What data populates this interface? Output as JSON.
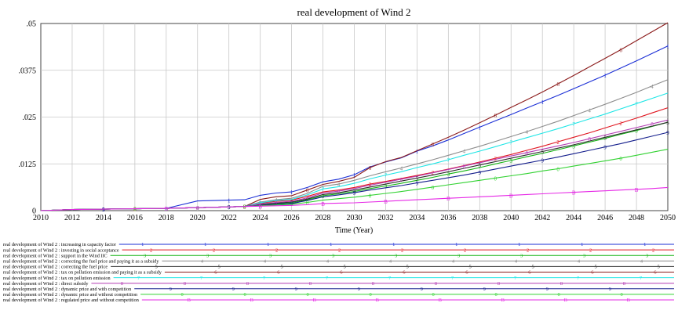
{
  "chart_data": {
    "type": "line",
    "title": "real development of Wind 2",
    "xlabel": "Time (Year)",
    "ylabel": "",
    "xlim": [
      2010,
      2050
    ],
    "ylim": [
      0,
      0.05
    ],
    "x_ticks": [
      "2010",
      "2012",
      "2014",
      "2016",
      "2018",
      "2020",
      "2022",
      "2024",
      "2026",
      "2028",
      "2030",
      "2032",
      "2034",
      "2036",
      "2038",
      "2040",
      "2042",
      "2044",
      "2046",
      "2048",
      "2050"
    ],
    "y_ticks": [
      "0",
      ".0125",
      ".025",
      ".0375",
      ".05"
    ],
    "grid": true,
    "x": [
      2010,
      2012,
      2014,
      2016,
      2018,
      2020,
      2022,
      2023,
      2024,
      2025,
      2026,
      2027,
      2028,
      2029,
      2030,
      2031,
      2032,
      2033,
      2034,
      2035,
      2036,
      2037,
      2038,
      2039,
      2040,
      2041,
      2042,
      2043,
      2044,
      2045,
      2046,
      2047,
      2048,
      2049,
      2050
    ],
    "series": [
      {
        "name": "real development of Wind 2 : increasing in capacity factor",
        "marker": "1",
        "color": "#1b2fd6",
        "values": [
          0,
          0.0003,
          0.0004,
          0.0005,
          0.0006,
          0.0026,
          0.0028,
          0.0029,
          0.0041,
          0.0047,
          0.005,
          0.0062,
          0.0077,
          0.0084,
          0.0096,
          0.0117,
          0.013,
          0.0141,
          0.0159,
          0.0173,
          0.0189,
          0.0206,
          0.0223,
          0.024,
          0.0257,
          0.0274,
          0.0291,
          0.0308,
          0.0326,
          0.0344,
          0.0362,
          0.0381,
          0.04,
          0.042,
          0.044
        ]
      },
      {
        "name": "real development of Wind 2 : investing in social acceptance",
        "marker": "2",
        "color": "#e0141e",
        "values": [
          0,
          0.0003,
          0.0004,
          0.0005,
          0.0006,
          0.0008,
          0.001,
          0.0011,
          0.002,
          0.0025,
          0.0028,
          0.0038,
          0.005,
          0.0055,
          0.0062,
          0.0071,
          0.0078,
          0.0086,
          0.0094,
          0.0102,
          0.0111,
          0.012,
          0.013,
          0.014,
          0.015,
          0.0161,
          0.0172,
          0.0184,
          0.0196,
          0.0208,
          0.0221,
          0.0234,
          0.0247,
          0.0261,
          0.0275
        ]
      },
      {
        "name": "real development of Wind 2 : support in the Wind IIC",
        "marker": "3",
        "color": "#14b414",
        "values": [
          0,
          0.0003,
          0.0004,
          0.0005,
          0.0006,
          0.0008,
          0.001,
          0.0011,
          0.0016,
          0.0019,
          0.0021,
          0.0029,
          0.004,
          0.0045,
          0.0051,
          0.0059,
          0.0066,
          0.0073,
          0.0081,
          0.0089,
          0.0098,
          0.0106,
          0.0115,
          0.0125,
          0.0134,
          0.0144,
          0.0153,
          0.0163,
          0.0173,
          0.0183,
          0.0193,
          0.0204,
          0.0214,
          0.0225,
          0.0236
        ]
      },
      {
        "name": "real development of Wind 2 : correcting the fuel price and paying it as a subsidy",
        "marker": "4",
        "color": "#8c8c8c",
        "values": [
          0,
          0.0003,
          0.0004,
          0.0005,
          0.0006,
          0.0008,
          0.001,
          0.0011,
          0.0023,
          0.0029,
          0.0033,
          0.0046,
          0.0065,
          0.0071,
          0.0081,
          0.0093,
          0.0104,
          0.0114,
          0.0125,
          0.0136,
          0.0148,
          0.016,
          0.0172,
          0.0185,
          0.0198,
          0.0211,
          0.0225,
          0.0239,
          0.0254,
          0.0269,
          0.0284,
          0.03,
          0.0316,
          0.0333,
          0.035
        ]
      },
      {
        "name": "real development of Wind 2 : correcting the fuel price",
        "marker": "5",
        "color": "#2a2a2a",
        "values": [
          0,
          0.0003,
          0.0004,
          0.0005,
          0.0006,
          0.0008,
          0.001,
          0.0011,
          0.0017,
          0.002,
          0.0023,
          0.0031,
          0.0043,
          0.0048,
          0.0055,
          0.0063,
          0.0071,
          0.0079,
          0.0087,
          0.0095,
          0.0104,
          0.0113,
          0.0122,
          0.0131,
          0.014,
          0.0149,
          0.0158,
          0.0167,
          0.0176,
          0.0186,
          0.0196,
          0.0206,
          0.0216,
          0.0226,
          0.0236
        ]
      },
      {
        "name": "real development of Wind 2 : tax on pollution emission and paying it as a subsidy",
        "marker": "6",
        "color": "#8b1a1a",
        "values": [
          0,
          0.0003,
          0.0004,
          0.0005,
          0.0006,
          0.0008,
          0.001,
          0.0011,
          0.003,
          0.0037,
          0.004,
          0.0055,
          0.007,
          0.0078,
          0.0089,
          0.0115,
          0.0131,
          0.0142,
          0.016,
          0.0178,
          0.0196,
          0.0215,
          0.0235,
          0.0255,
          0.0276,
          0.0296,
          0.0317,
          0.0339,
          0.0361,
          0.0384,
          0.0407,
          0.043,
          0.0454,
          0.0478,
          0.0502
        ]
      },
      {
        "name": "real development of Wind 2 : tax on pollution emission",
        "marker": "7",
        "color": "#1ee6e6",
        "values": [
          0,
          0.0003,
          0.0004,
          0.0005,
          0.0006,
          0.0008,
          0.001,
          0.0011,
          0.0021,
          0.0027,
          0.003,
          0.0042,
          0.0058,
          0.0064,
          0.0073,
          0.0085,
          0.0095,
          0.0104,
          0.0115,
          0.0125,
          0.0136,
          0.0148,
          0.0159,
          0.0171,
          0.0183,
          0.0195,
          0.0207,
          0.0219,
          0.0232,
          0.0245,
          0.0258,
          0.0272,
          0.0286,
          0.03,
          0.0314
        ]
      },
      {
        "name": "real development of Wind 2 : direct subsidy",
        "marker": "8",
        "color": "#b43cb4",
        "values": [
          0,
          0.0003,
          0.0004,
          0.0005,
          0.0006,
          0.0008,
          0.001,
          0.0011,
          0.0018,
          0.0022,
          0.0025,
          0.0034,
          0.0047,
          0.0052,
          0.0059,
          0.0068,
          0.0076,
          0.0084,
          0.0092,
          0.0101,
          0.011,
          0.0119,
          0.0128,
          0.0137,
          0.0146,
          0.0155,
          0.0164,
          0.0173,
          0.0182,
          0.0192,
          0.0202,
          0.0212,
          0.0222,
          0.0232,
          0.0242
        ]
      },
      {
        "name": "real development of Wind 2 : dynamic price and with competition",
        "marker": "9",
        "color": "#141e8c",
        "values": [
          0,
          0.0003,
          0.0004,
          0.0005,
          0.0006,
          0.0008,
          0.001,
          0.0011,
          0.0014,
          0.0017,
          0.0019,
          0.0027,
          0.0037,
          0.0042,
          0.0048,
          0.0055,
          0.0061,
          0.0067,
          0.0074,
          0.0081,
          0.0088,
          0.0095,
          0.0103,
          0.0111,
          0.0119,
          0.0127,
          0.0135,
          0.0143,
          0.0152,
          0.0161,
          0.017,
          0.0179,
          0.0189,
          0.0199,
          0.0209
        ]
      },
      {
        "name": "real development of Wind 2 : dynamic price and without competition",
        "marker": "0",
        "color": "#32d232",
        "values": [
          0,
          0.0003,
          0.0004,
          0.0005,
          0.0006,
          0.0008,
          0.001,
          0.0011,
          0.0013,
          0.0015,
          0.0017,
          0.0022,
          0.0028,
          0.0032,
          0.0036,
          0.0041,
          0.0046,
          0.0051,
          0.0057,
          0.0063,
          0.0069,
          0.0075,
          0.0081,
          0.0087,
          0.0093,
          0.0099,
          0.0106,
          0.0112,
          0.0119,
          0.0126,
          0.0133,
          0.014,
          0.0148,
          0.0156,
          0.0164
        ]
      },
      {
        "name": "real development of Wind 2 : regulated price and without competition",
        "marker": "B",
        "color": "#e628e6",
        "values": [
          0,
          0.0003,
          0.0004,
          0.0005,
          0.0006,
          0.0008,
          0.001,
          0.0011,
          0.0012,
          0.0013,
          0.0014,
          0.0016,
          0.0019,
          0.002,
          0.0021,
          0.0023,
          0.0025,
          0.0027,
          0.0029,
          0.0031,
          0.0033,
          0.0035,
          0.0037,
          0.0039,
          0.0041,
          0.0043,
          0.0045,
          0.0047,
          0.0049,
          0.0051,
          0.0053,
          0.0055,
          0.0057,
          0.0059,
          0.0062
        ]
      }
    ]
  }
}
